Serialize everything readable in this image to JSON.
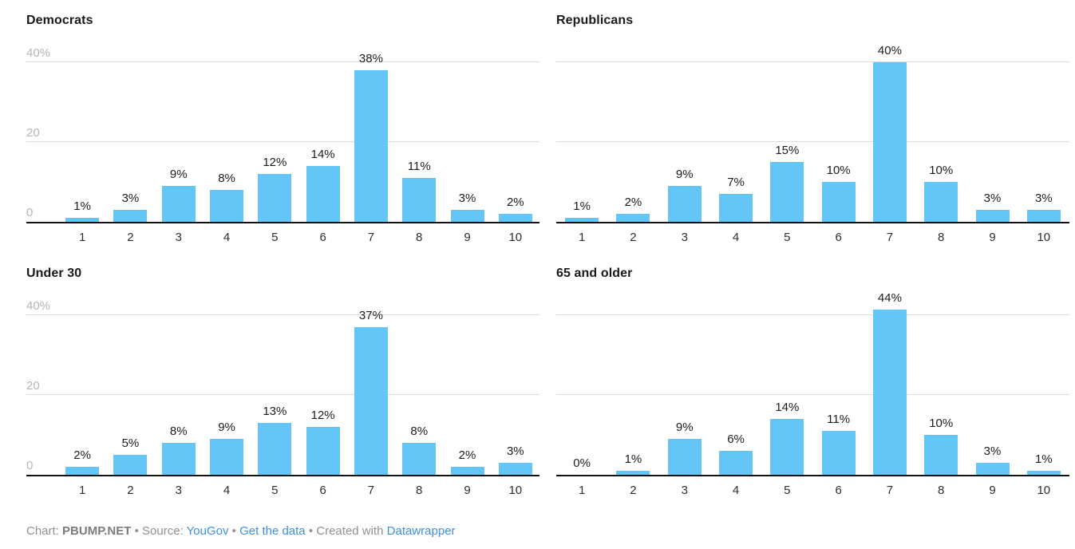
{
  "colors": {
    "bar": "#64c6f6",
    "grid": "#dcdcdc",
    "axis": "#111111",
    "y_tick_label": "#b5b5b5",
    "value_label": "#1c1c1c",
    "x_tick_label": "#2e2e2e",
    "title": "#1a1a1a",
    "footer_text": "#919191",
    "footer_bold": "#7b7b7b",
    "link": "#3e8ede"
  },
  "chart_data": [
    {
      "type": "bar",
      "title": "Democrats",
      "categories": [
        "1",
        "2",
        "3",
        "4",
        "5",
        "6",
        "7",
        "8",
        "9",
        "10"
      ],
      "values": [
        1,
        3,
        9,
        8,
        12,
        14,
        38,
        11,
        3,
        2
      ],
      "value_labels": [
        "1%",
        "3%",
        "9%",
        "8%",
        "12%",
        "14%",
        "38%",
        "11%",
        "3%",
        "2%"
      ],
      "ylim": [
        0,
        44
      ],
      "y_ticks": [
        0,
        20,
        40
      ],
      "y_tick_labels": [
        "0",
        "20",
        "40%"
      ],
      "y_axis_visible": true,
      "grid": true,
      "legend": false
    },
    {
      "type": "bar",
      "title": "Republicans",
      "categories": [
        "1",
        "2",
        "3",
        "4",
        "5",
        "6",
        "7",
        "8",
        "9",
        "10"
      ],
      "values": [
        1,
        2,
        9,
        7,
        15,
        10,
        40,
        10,
        3,
        3
      ],
      "value_labels": [
        "1%",
        "2%",
        "9%",
        "7%",
        "15%",
        "10%",
        "40%",
        "10%",
        "3%",
        "3%"
      ],
      "ylim": [
        0,
        44
      ],
      "y_ticks": [
        0,
        20,
        40
      ],
      "y_tick_labels": [
        "0",
        "20",
        "40%"
      ],
      "y_axis_visible": false,
      "grid": true,
      "legend": false
    },
    {
      "type": "bar",
      "title": "Under 30",
      "categories": [
        "1",
        "2",
        "3",
        "4",
        "5",
        "6",
        "7",
        "8",
        "9",
        "10"
      ],
      "values": [
        2,
        5,
        8,
        9,
        13,
        12,
        37,
        8,
        2,
        3
      ],
      "value_labels": [
        "2%",
        "5%",
        "8%",
        "9%",
        "13%",
        "12%",
        "37%",
        "8%",
        "2%",
        "3%"
      ],
      "ylim": [
        0,
        44
      ],
      "y_ticks": [
        0,
        20,
        40
      ],
      "y_tick_labels": [
        "0",
        "20",
        "40%"
      ],
      "y_axis_visible": true,
      "grid": true,
      "legend": false
    },
    {
      "type": "bar",
      "title": "65 and older",
      "categories": [
        "1",
        "2",
        "3",
        "4",
        "5",
        "6",
        "7",
        "8",
        "9",
        "10"
      ],
      "values": [
        0,
        1,
        9,
        6,
        14,
        11,
        44,
        10,
        3,
        1
      ],
      "value_labels": [
        "0%",
        "1%",
        "9%",
        "6%",
        "14%",
        "11%",
        "44%",
        "10%",
        "3%",
        "1%"
      ],
      "ylim": [
        0,
        44
      ],
      "y_ticks": [
        0,
        20,
        40
      ],
      "y_tick_labels": [
        "0",
        "20",
        "40%"
      ],
      "y_axis_visible": false,
      "grid": true,
      "legend": false
    }
  ],
  "footer": {
    "chart_label": "Chart:",
    "chart_name": "PBUMP.NET",
    "bullet": "•",
    "source_label": "Source:",
    "source_link_label": "YouGov",
    "get_data_link_label": "Get the data",
    "created_with_label": "Created with",
    "tool_link_label": "Datawrapper"
  }
}
